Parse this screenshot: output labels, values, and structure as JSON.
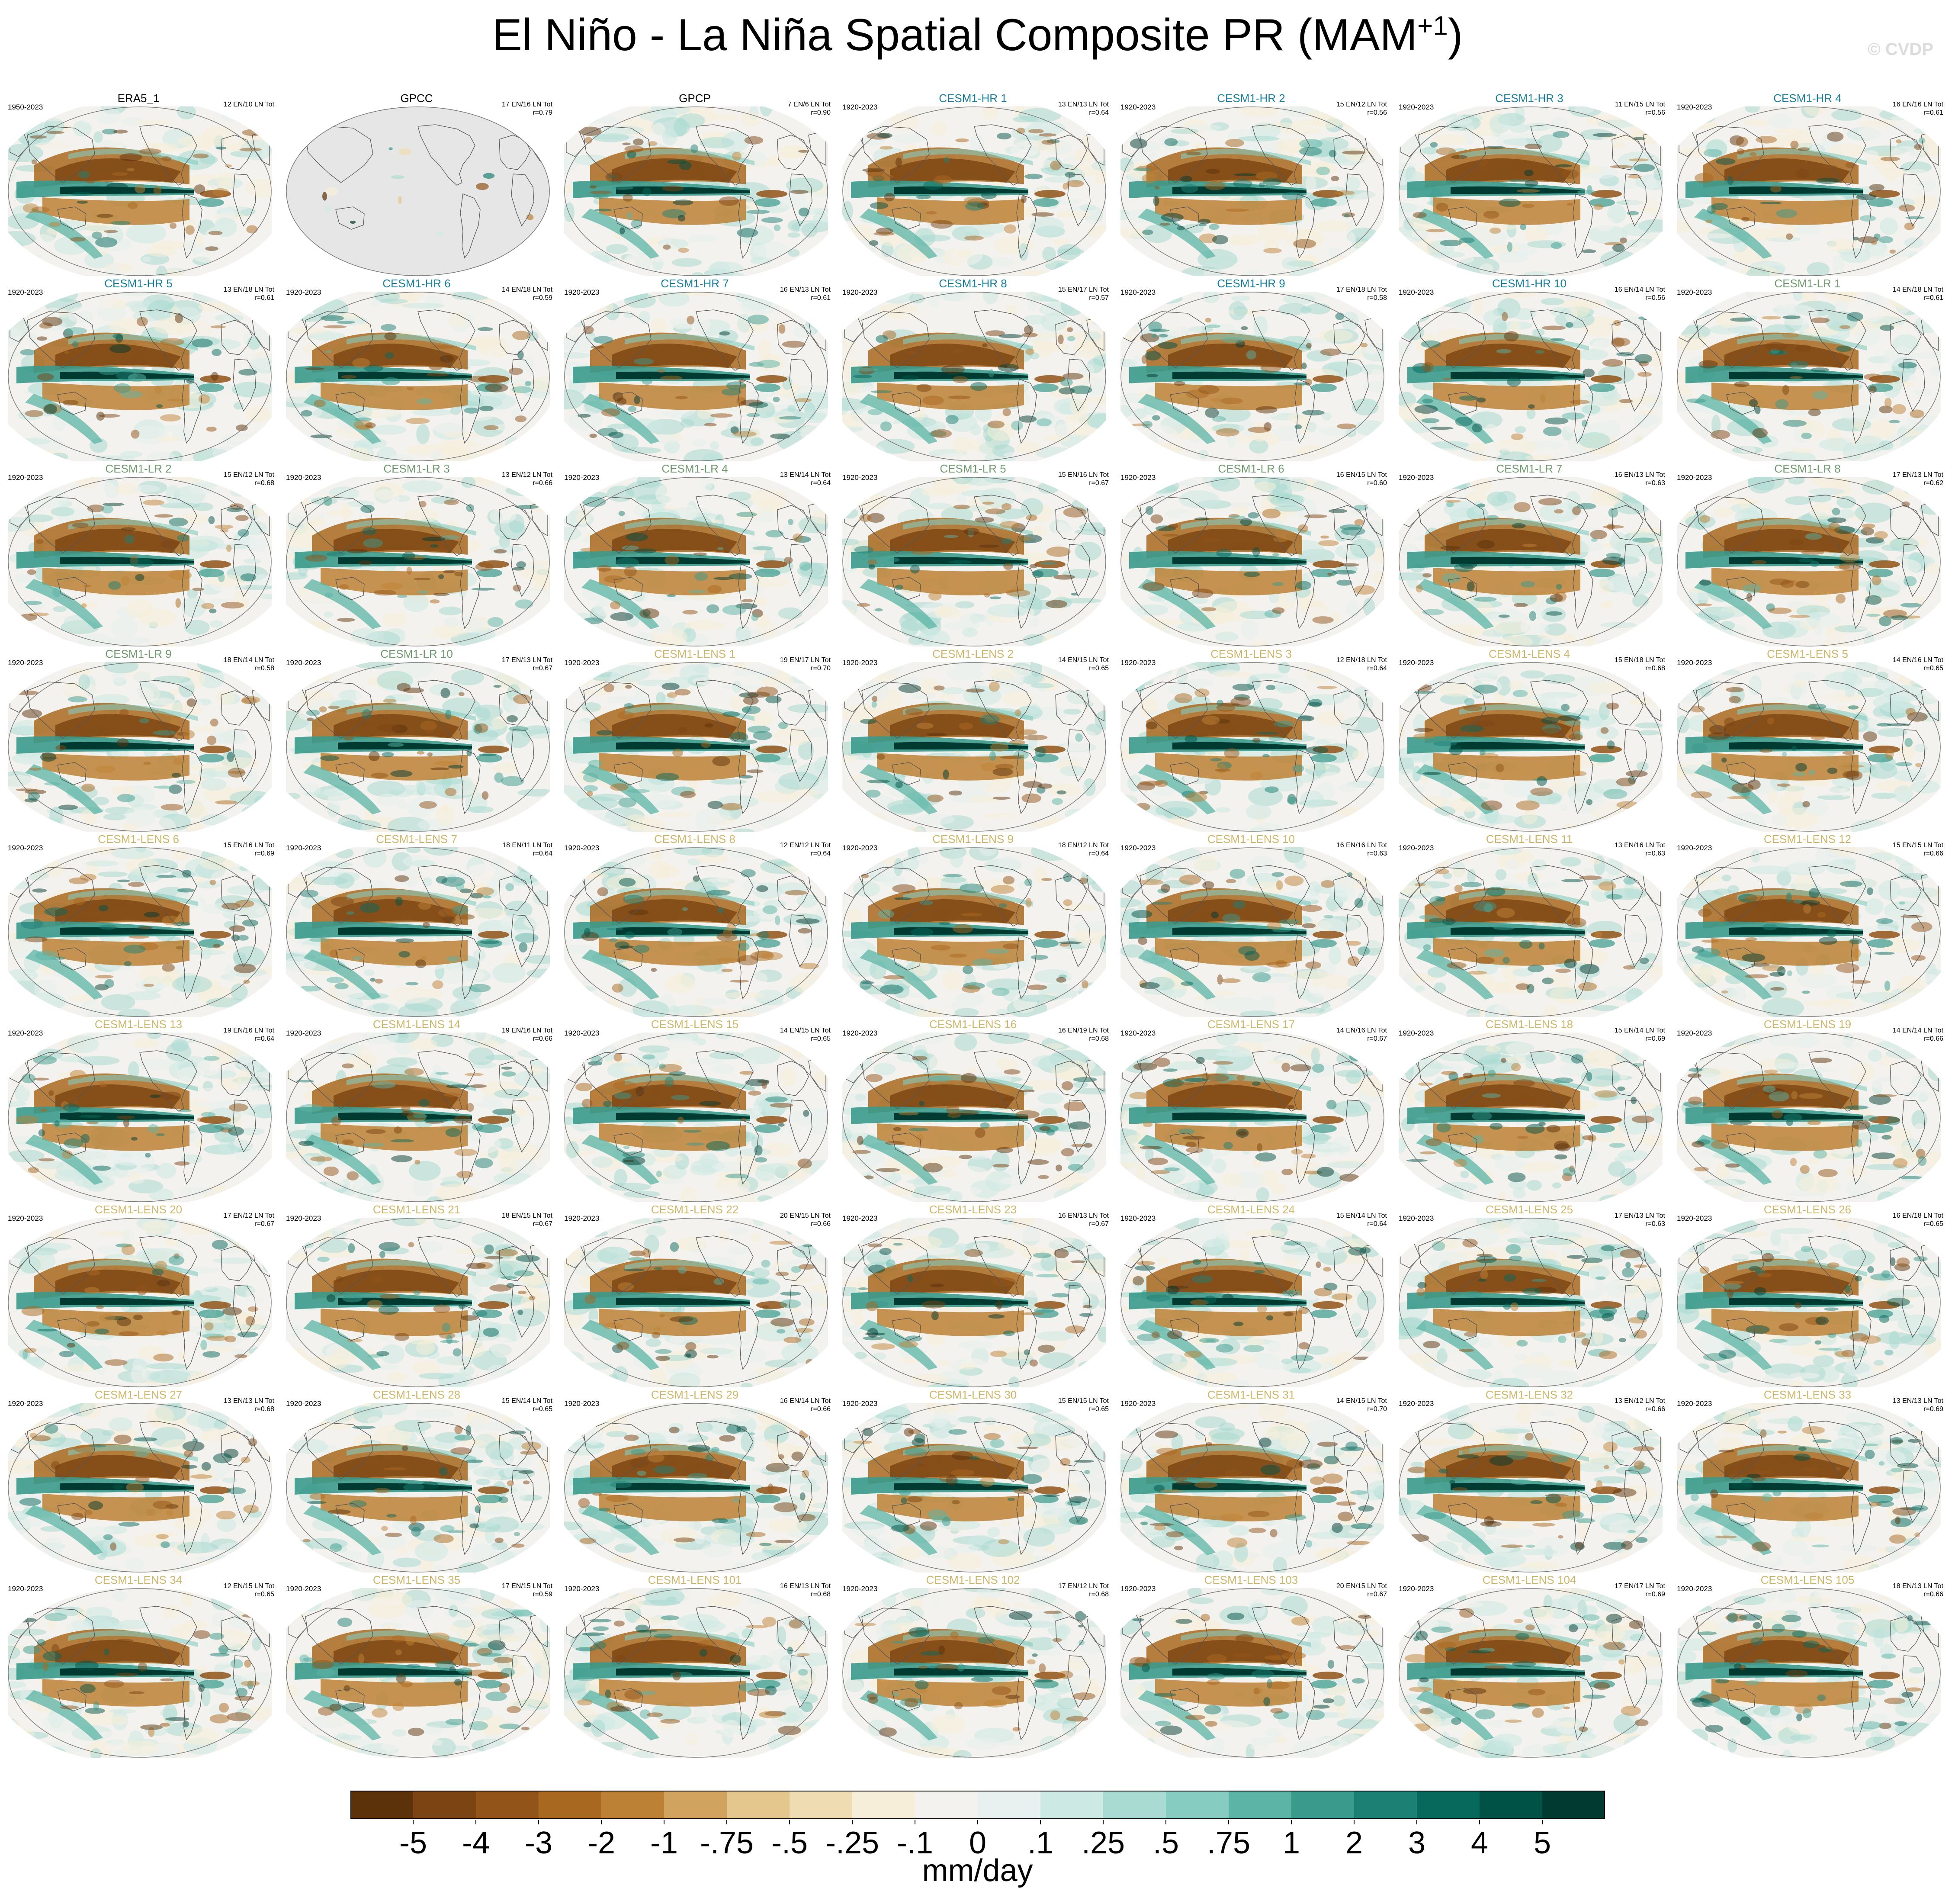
{
  "figure": {
    "title_main": "El Niño - La Niña Spatial Composite PR (MAM",
    "title_sup": "+1",
    "title_end": ")",
    "credit": "© CVDP"
  },
  "colors": {
    "obs_title": "#000000",
    "hr_title": "#1a7f9c",
    "lr_title": "#6f9b6f",
    "lens_title": "#cfb76a",
    "land_missing": "#e6e6e6",
    "coast": "#555555"
  },
  "chart_data": {
    "type": "heatmap",
    "variable": "PR",
    "season": "MAM+1",
    "units": "mm/day",
    "colorbar": {
      "levels": [
        "-5",
        "-4",
        "-3",
        "-2",
        "-1",
        "-.75",
        "-.5",
        "-.25",
        "-.1",
        "0",
        ".1",
        ".25",
        ".5",
        ".75",
        "1",
        "2",
        "3",
        "4",
        "5"
      ],
      "colors": [
        "#5b3209",
        "#7b4412",
        "#925418",
        "#a9681f",
        "#bd8135",
        "#d0a45f",
        "#e3c78d",
        "#efdcb2",
        "#f6eed8",
        "#f4f2ee",
        "#e8f1ef",
        "#cde9e4",
        "#a9dbd2",
        "#86ccc0",
        "#5cb4a6",
        "#3a9a8c",
        "#1d8074",
        "#07685c",
        "#005146",
        "#003a30"
      ]
    },
    "panels": [
      {
        "name": "ERA5_1",
        "group": "obs",
        "years": "1950-2023",
        "counts": "12 EN/10 LN Tot",
        "r": ""
      },
      {
        "name": "GPCC",
        "group": "obs",
        "years": "",
        "counts": "17 EN/16 LN Tot",
        "r": "r=0.79",
        "land_only": true
      },
      {
        "name": "GPCP",
        "group": "obs",
        "years": "",
        "counts": "7 EN/6 LN Tot",
        "r": "r=0.90"
      },
      {
        "name": "CESM1-HR 1",
        "group": "hr",
        "years": "1920-2023",
        "counts": "13 EN/13 LN Tot",
        "r": "r=0.64"
      },
      {
        "name": "CESM1-HR 2",
        "group": "hr",
        "years": "1920-2023",
        "counts": "15 EN/12 LN Tot",
        "r": "r=0.56"
      },
      {
        "name": "CESM1-HR 3",
        "group": "hr",
        "years": "1920-2023",
        "counts": "11 EN/15 LN Tot",
        "r": "r=0.56"
      },
      {
        "name": "CESM1-HR 4",
        "group": "hr",
        "years": "1920-2023",
        "counts": "16 EN/16 LN Tot",
        "r": "r=0.61"
      },
      {
        "name": "CESM1-HR 5",
        "group": "hr",
        "years": "1920-2023",
        "counts": "13 EN/18 LN Tot",
        "r": "r=0.61"
      },
      {
        "name": "CESM1-HR 6",
        "group": "hr",
        "years": "1920-2023",
        "counts": "14 EN/18 LN Tot",
        "r": "r=0.59"
      },
      {
        "name": "CESM1-HR 7",
        "group": "hr",
        "years": "1920-2023",
        "counts": "16 EN/13 LN Tot",
        "r": "r=0.61"
      },
      {
        "name": "CESM1-HR 8",
        "group": "hr",
        "years": "1920-2023",
        "counts": "15 EN/17 LN Tot",
        "r": "r=0.57"
      },
      {
        "name": "CESM1-HR 9",
        "group": "hr",
        "years": "1920-2023",
        "counts": "17 EN/18 LN Tot",
        "r": "r=0.58"
      },
      {
        "name": "CESM1-HR 10",
        "group": "hr",
        "years": "1920-2023",
        "counts": "16 EN/14 LN Tot",
        "r": "r=0.56"
      },
      {
        "name": "CESM1-LR 1",
        "group": "lr",
        "years": "1920-2023",
        "counts": "14 EN/18 LN Tot",
        "r": "r=0.61"
      },
      {
        "name": "CESM1-LR 2",
        "group": "lr",
        "years": "1920-2023",
        "counts": "15 EN/12 LN Tot",
        "r": "r=0.68"
      },
      {
        "name": "CESM1-LR 3",
        "group": "lr",
        "years": "1920-2023",
        "counts": "13 EN/12 LN Tot",
        "r": "r=0.66"
      },
      {
        "name": "CESM1-LR 4",
        "group": "lr",
        "years": "1920-2023",
        "counts": "13 EN/14 LN Tot",
        "r": "r=0.64"
      },
      {
        "name": "CESM1-LR 5",
        "group": "lr",
        "years": "1920-2023",
        "counts": "15 EN/16 LN Tot",
        "r": "r=0.67"
      },
      {
        "name": "CESM1-LR 6",
        "group": "lr",
        "years": "1920-2023",
        "counts": "16 EN/15 LN Tot",
        "r": "r=0.60"
      },
      {
        "name": "CESM1-LR 7",
        "group": "lr",
        "years": "1920-2023",
        "counts": "16 EN/13 LN Tot",
        "r": "r=0.63"
      },
      {
        "name": "CESM1-LR 8",
        "group": "lr",
        "years": "1920-2023",
        "counts": "17 EN/13 LN Tot",
        "r": "r=0.62"
      },
      {
        "name": "CESM1-LR 9",
        "group": "lr",
        "years": "1920-2023",
        "counts": "18 EN/14 LN Tot",
        "r": "r=0.58"
      },
      {
        "name": "CESM1-LR 10",
        "group": "lr",
        "years": "1920-2023",
        "counts": "17 EN/13 LN Tot",
        "r": "r=0.67"
      },
      {
        "name": "CESM1-LENS 1",
        "group": "lens",
        "years": "1920-2023",
        "counts": "19 EN/17 LN Tot",
        "r": "r=0.70"
      },
      {
        "name": "CESM1-LENS 2",
        "group": "lens",
        "years": "1920-2023",
        "counts": "14 EN/15 LN Tot",
        "r": "r=0.65"
      },
      {
        "name": "CESM1-LENS 3",
        "group": "lens",
        "years": "1920-2023",
        "counts": "12 EN/18 LN Tot",
        "r": "r=0.64"
      },
      {
        "name": "CESM1-LENS 4",
        "group": "lens",
        "years": "1920-2023",
        "counts": "15 EN/18 LN Tot",
        "r": "r=0.68"
      },
      {
        "name": "CESM1-LENS 5",
        "group": "lens",
        "years": "1920-2023",
        "counts": "14 EN/16 LN Tot",
        "r": "r=0.65"
      },
      {
        "name": "CESM1-LENS 6",
        "group": "lens",
        "years": "1920-2023",
        "counts": "15 EN/16 LN Tot",
        "r": "r=0.69"
      },
      {
        "name": "CESM1-LENS 7",
        "group": "lens",
        "years": "1920-2023",
        "counts": "18 EN/11 LN Tot",
        "r": "r=0.64"
      },
      {
        "name": "CESM1-LENS 8",
        "group": "lens",
        "years": "1920-2023",
        "counts": "12 EN/12 LN Tot",
        "r": "r=0.64"
      },
      {
        "name": "CESM1-LENS 9",
        "group": "lens",
        "years": "1920-2023",
        "counts": "18 EN/12 LN Tot",
        "r": "r=0.64"
      },
      {
        "name": "CESM1-LENS 10",
        "group": "lens",
        "years": "1920-2023",
        "counts": "16 EN/16 LN Tot",
        "r": "r=0.63"
      },
      {
        "name": "CESM1-LENS 11",
        "group": "lens",
        "years": "1920-2023",
        "counts": "13 EN/16 LN Tot",
        "r": "r=0.63"
      },
      {
        "name": "CESM1-LENS 12",
        "group": "lens",
        "years": "1920-2023",
        "counts": "15 EN/15 LN Tot",
        "r": "r=0.66"
      },
      {
        "name": "CESM1-LENS 13",
        "group": "lens",
        "years": "1920-2023",
        "counts": "19 EN/16 LN Tot",
        "r": "r=0.64"
      },
      {
        "name": "CESM1-LENS 14",
        "group": "lens",
        "years": "1920-2023",
        "counts": "19 EN/16 LN Tot",
        "r": "r=0.66"
      },
      {
        "name": "CESM1-LENS 15",
        "group": "lens",
        "years": "1920-2023",
        "counts": "14 EN/15 LN Tot",
        "r": "r=0.65"
      },
      {
        "name": "CESM1-LENS 16",
        "group": "lens",
        "years": "1920-2023",
        "counts": "16 EN/19 LN Tot",
        "r": "r=0.68"
      },
      {
        "name": "CESM1-LENS 17",
        "group": "lens",
        "years": "1920-2023",
        "counts": "14 EN/16 LN Tot",
        "r": "r=0.67"
      },
      {
        "name": "CESM1-LENS 18",
        "group": "lens",
        "years": "1920-2023",
        "counts": "15 EN/14 LN Tot",
        "r": "r=0.69"
      },
      {
        "name": "CESM1-LENS 19",
        "group": "lens",
        "years": "1920-2023",
        "counts": "14 EN/14 LN Tot",
        "r": "r=0.66"
      },
      {
        "name": "CESM1-LENS 20",
        "group": "lens",
        "years": "1920-2023",
        "counts": "17 EN/12 LN Tot",
        "r": "r=0.67"
      },
      {
        "name": "CESM1-LENS 21",
        "group": "lens",
        "years": "1920-2023",
        "counts": "18 EN/15 LN Tot",
        "r": "r=0.67"
      },
      {
        "name": "CESM1-LENS 22",
        "group": "lens",
        "years": "1920-2023",
        "counts": "20 EN/15 LN Tot",
        "r": "r=0.66"
      },
      {
        "name": "CESM1-LENS 23",
        "group": "lens",
        "years": "1920-2023",
        "counts": "16 EN/13 LN Tot",
        "r": "r=0.67"
      },
      {
        "name": "CESM1-LENS 24",
        "group": "lens",
        "years": "1920-2023",
        "counts": "15 EN/14 LN Tot",
        "r": "r=0.64"
      },
      {
        "name": "CESM1-LENS 25",
        "group": "lens",
        "years": "1920-2023",
        "counts": "17 EN/13 LN Tot",
        "r": "r=0.63"
      },
      {
        "name": "CESM1-LENS 26",
        "group": "lens",
        "years": "1920-2023",
        "counts": "16 EN/18 LN Tot",
        "r": "r=0.65"
      },
      {
        "name": "CESM1-LENS 27",
        "group": "lens",
        "years": "1920-2023",
        "counts": "13 EN/13 LN Tot",
        "r": "r=0.68"
      },
      {
        "name": "CESM1-LENS 28",
        "group": "lens",
        "years": "1920-2023",
        "counts": "15 EN/14 LN Tot",
        "r": "r=0.65"
      },
      {
        "name": "CESM1-LENS 29",
        "group": "lens",
        "years": "1920-2023",
        "counts": "16 EN/14 LN Tot",
        "r": "r=0.66"
      },
      {
        "name": "CESM1-LENS 30",
        "group": "lens",
        "years": "1920-2023",
        "counts": "15 EN/15 LN Tot",
        "r": "r=0.65"
      },
      {
        "name": "CESM1-LENS 31",
        "group": "lens",
        "years": "1920-2023",
        "counts": "14 EN/15 LN Tot",
        "r": "r=0.70"
      },
      {
        "name": "CESM1-LENS 32",
        "group": "lens",
        "years": "1920-2023",
        "counts": "13 EN/12 LN Tot",
        "r": "r=0.66"
      },
      {
        "name": "CESM1-LENS 33",
        "group": "lens",
        "years": "1920-2023",
        "counts": "13 EN/13 LN Tot",
        "r": "r=0.69"
      },
      {
        "name": "CESM1-LENS 34",
        "group": "lens",
        "years": "1920-2023",
        "counts": "12 EN/15 LN Tot",
        "r": "r=0.65"
      },
      {
        "name": "CESM1-LENS 35",
        "group": "lens",
        "years": "1920-2023",
        "counts": "17 EN/15 LN Tot",
        "r": "r=0.59"
      },
      {
        "name": "CESM1-LENS 101",
        "group": "lens",
        "years": "1920-2023",
        "counts": "16 EN/13 LN Tot",
        "r": "r=0.68"
      },
      {
        "name": "CESM1-LENS 102",
        "group": "lens",
        "years": "1920-2023",
        "counts": "17 EN/12 LN Tot",
        "r": "r=0.68"
      },
      {
        "name": "CESM1-LENS 103",
        "group": "lens",
        "years": "1920-2023",
        "counts": "20 EN/15 LN Tot",
        "r": "r=0.67"
      },
      {
        "name": "CESM1-LENS 104",
        "group": "lens",
        "years": "1920-2023",
        "counts": "17 EN/17 LN Tot",
        "r": "r=0.69"
      },
      {
        "name": "CESM1-LENS 105",
        "group": "lens",
        "years": "1920-2023",
        "counts": "18 EN/13 LN Tot",
        "r": "r=0.66"
      }
    ]
  }
}
